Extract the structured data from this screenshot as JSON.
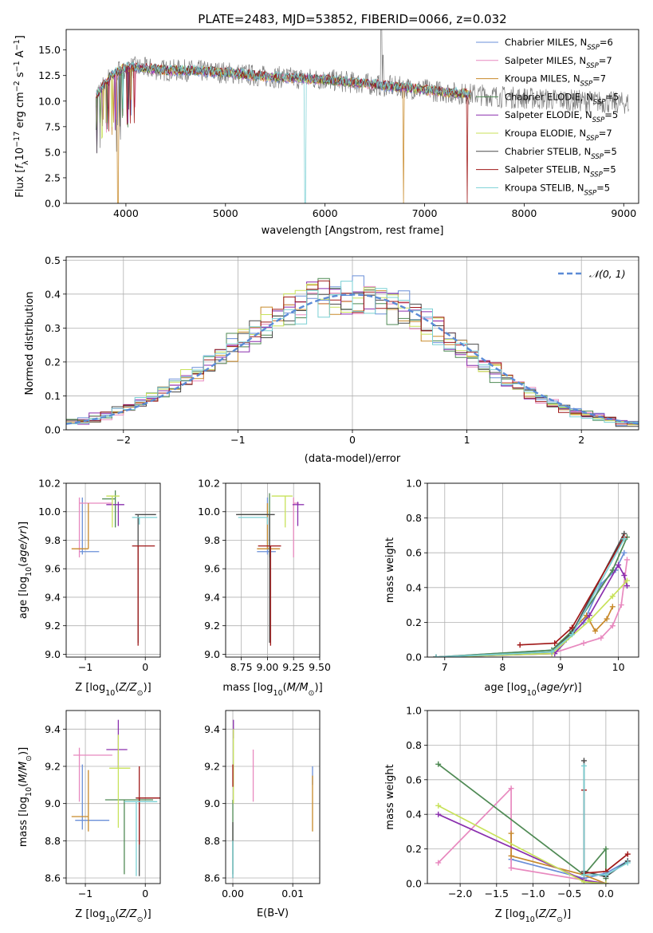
{
  "figure_title": "PLATE=2483, MJD=53852, FIBERID=0066, z=0.032",
  "model_colors": [
    "#6a8fd8",
    "#e889bf",
    "#c88a2a",
    "#4f8a54",
    "#8a2fae",
    "#c8e25a",
    "#4a4a4a",
    "#a01818",
    "#7ad0d4"
  ],
  "chart_data": [
    {
      "id": "spectrum",
      "type": "line",
      "title": "PLATE=2483, MJD=53852, FIBERID=0066, z=0.032",
      "xlabel": "wavelength [Angstrom, rest frame]",
      "ylabel": "Flux [f_λ 10^-17 erg cm^-2 s^-1 A^-1]",
      "xlim": [
        3400,
        9150
      ],
      "ylim": [
        0,
        17
      ],
      "xticks": [
        4000,
        5000,
        6000,
        7000,
        8000,
        9000
      ],
      "yticks": [
        0.0,
        2.5,
        5.0,
        7.5,
        10.0,
        12.5,
        15.0
      ],
      "legend_position": "top-right",
      "legend": [
        {
          "base": "Chabrier MILES, N",
          "sub": "SSP",
          "tail": "=6"
        },
        {
          "base": "Salpeter MILES, N",
          "sub": "SSP",
          "tail": "=7"
        },
        {
          "base": "Kroupa MILES, N",
          "sub": "SSP",
          "tail": "=7"
        },
        {
          "base": "Chabrier ELODIE, N",
          "sub": "SSP",
          "tail": "=5"
        },
        {
          "base": "Salpeter ELODIE, N",
          "sub": "SSP",
          "tail": "=5"
        },
        {
          "base": "Kroupa ELODIE, N",
          "sub": "SSP",
          "tail": "=7"
        },
        {
          "base": "Chabrier STELIB, N",
          "sub": "SSP",
          "tail": "=5"
        },
        {
          "base": "Salpeter STELIB, N",
          "sub": "SSP",
          "tail": "=5"
        },
        {
          "base": "Kroupa STELIB, N",
          "sub": "SSP",
          "tail": "=5"
        }
      ],
      "data_trend": {
        "x": [
          3700,
          3850,
          4000,
          4200,
          4400,
          4600,
          4800,
          5000,
          5200,
          5400,
          5600,
          5800,
          6000,
          6200,
          6400,
          6600,
          6800,
          7000,
          7200,
          7400,
          7600,
          7800,
          8000,
          8200,
          8400,
          8600,
          8800,
          9000
        ],
        "y": [
          10.5,
          12.5,
          13.3,
          13.2,
          13.0,
          13.0,
          12.9,
          12.8,
          12.6,
          12.4,
          12.3,
          12.2,
          12.1,
          11.9,
          11.7,
          11.5,
          11.3,
          11.1,
          10.9,
          10.7,
          10.6,
          10.4,
          10.3,
          10.2,
          10.1,
          10.0,
          9.9,
          9.8
        ]
      },
      "data_end": 9050,
      "model_ends": [
        7460,
        7460,
        7460,
        7460,
        7460,
        7460,
        7460,
        7460,
        7460
      ],
      "model_drops": [
        {
          "model": 2,
          "x": [
            3920,
            6790
          ]
        },
        {
          "model": 8,
          "x": [
            5800
          ]
        },
        {
          "model": 7,
          "x": [
            7430
          ]
        }
      ]
    },
    {
      "id": "residuals",
      "type": "histogram",
      "xlabel": "(data-model)/error",
      "ylabel": "Normed distribution",
      "xlim": [
        -2.5,
        2.5
      ],
      "ylim": [
        0,
        0.51
      ],
      "xticks": [
        -2,
        -1,
        0,
        1,
        2
      ],
      "yticks": [
        0.0,
        0.1,
        0.2,
        0.3,
        0.4,
        0.5
      ],
      "bin_width": 0.1,
      "legend_position": "top-right",
      "reference_curve": {
        "name": "𝒩(0, 1)",
        "mean": 0,
        "sigma": 1,
        "style": "dashed",
        "color": "#5b8bd6"
      }
    },
    {
      "id": "z-age",
      "type": "scatter",
      "xlabel": "Z [log10(Z/Z⊙)]",
      "ylabel": "age [log10(age/yr)]",
      "xlim": [
        -1.32,
        0.25
      ],
      "ylim": [
        8.98,
        10.2
      ],
      "xticks": [
        -1,
        0
      ],
      "yticks": [
        9.0,
        9.2,
        9.4,
        9.6,
        9.8,
        10.0,
        10.2
      ],
      "points": [
        {
          "model": 0,
          "x": -1.05,
          "y": 9.72,
          "xerr": [
            0.05,
            0.28
          ],
          "yerr": [
            0.02,
            0.38
          ]
        },
        {
          "model": 1,
          "x": -1.1,
          "y": 10.06,
          "xerr": [
            0.0,
            0.55
          ],
          "yerr": [
            0.38,
            0.04
          ]
        },
        {
          "model": 2,
          "x": -0.95,
          "y": 9.74,
          "xerr": [
            0.28,
            0.0
          ],
          "yerr": [
            0.0,
            0.32
          ]
        },
        {
          "model": 3,
          "x": -0.5,
          "y": 10.09,
          "xerr": [
            0.22,
            0.0
          ],
          "yerr": [
            0.2,
            0.06
          ]
        },
        {
          "model": 4,
          "x": -0.45,
          "y": 10.05,
          "xerr": [
            0.2,
            0.1
          ],
          "yerr": [
            0.15,
            0.02
          ]
        },
        {
          "model": 5,
          "x": -0.55,
          "y": 10.11,
          "xerr": [
            0.1,
            0.12
          ],
          "yerr": [
            0.22,
            0.0
          ]
        },
        {
          "model": 6,
          "x": -0.12,
          "y": 9.98,
          "xerr": [
            0.05,
            0.3
          ],
          "yerr": [
            0.9,
            0.0
          ]
        },
        {
          "model": 7,
          "x": -0.12,
          "y": 9.76,
          "xerr": [
            0.1,
            0.28
          ],
          "yerr": [
            0.7,
            0.0
          ]
        },
        {
          "model": 8,
          "x": -0.1,
          "y": 9.96,
          "xerr": [
            0.12,
            0.3
          ],
          "yerr": [
            0.05,
            0.0
          ]
        }
      ]
    },
    {
      "id": "mass-age",
      "type": "scatter",
      "xlabel": "mass [log10(M/M⊙)]",
      "ylabel": "",
      "xlim": [
        8.6,
        9.5
      ],
      "ylim": [
        8.98,
        10.2
      ],
      "xticks": [
        8.75,
        9.0,
        9.25,
        9.5
      ],
      "yticks": [
        9.0,
        9.2,
        9.4,
        9.6,
        9.8,
        10.0,
        10.2
      ],
      "points": [
        {
          "model": 0,
          "x": 9.0,
          "y": 9.72,
          "xerr": [
            0.1,
            0.08
          ],
          "yerr": [
            0.02,
            0.38
          ]
        },
        {
          "model": 1,
          "x": 9.25,
          "y": 10.06,
          "xerr": [
            0.0,
            0.05
          ],
          "yerr": [
            0.38,
            0.04
          ]
        },
        {
          "model": 2,
          "x": 9.0,
          "y": 9.74,
          "xerr": [
            0.1,
            0.12
          ],
          "yerr": [
            0.0,
            0.32
          ]
        },
        {
          "model": 3,
          "x": 9.02,
          "y": 9.98,
          "xerr": [
            0.3,
            0.0
          ],
          "yerr": [
            0.3,
            0.15
          ]
        },
        {
          "model": 4,
          "x": 9.29,
          "y": 10.05,
          "xerr": [
            0.05,
            0.06
          ],
          "yerr": [
            0.15,
            0.02
          ]
        },
        {
          "model": 5,
          "x": 9.17,
          "y": 10.11,
          "xerr": [
            0.13,
            0.07
          ],
          "yerr": [
            0.22,
            0.0
          ]
        },
        {
          "model": 6,
          "x": 9.02,
          "y": 9.98,
          "xerr": [
            0.32,
            0.05
          ],
          "yerr": [
            0.9,
            0.0
          ]
        },
        {
          "model": 7,
          "x": 9.03,
          "y": 9.76,
          "xerr": [
            0.12,
            0.1
          ],
          "yerr": [
            0.7,
            0.0
          ]
        },
        {
          "model": 8,
          "x": 9.0,
          "y": 9.96,
          "xerr": [
            0.28,
            0.0
          ],
          "yerr": [
            0.05,
            0.0
          ]
        }
      ]
    },
    {
      "id": "age-weight",
      "type": "line",
      "xlabel": "age [log10(age/yr)]",
      "ylabel": "mass weight",
      "xlim": [
        6.7,
        10.35
      ],
      "ylim": [
        0,
        1
      ],
      "xticks": [
        7,
        8,
        9,
        10
      ],
      "yticks": [
        0.0,
        0.2,
        0.4,
        0.6,
        0.8,
        1.0
      ],
      "series": [
        {
          "model": 0,
          "x": [
            6.85,
            8.85,
            9.1,
            9.4,
            9.7,
            9.95,
            10.1
          ],
          "y": [
            0.0,
            0.04,
            0.1,
            0.2,
            0.42,
            0.5,
            0.6
          ]
        },
        {
          "model": 1,
          "x": [
            6.85,
            8.85,
            9.4,
            9.7,
            9.9,
            10.05,
            10.15
          ],
          "y": [
            0.0,
            0.02,
            0.08,
            0.11,
            0.18,
            0.3,
            0.56
          ]
        },
        {
          "model": 2,
          "x": [
            6.85,
            8.85,
            9.45,
            9.6,
            9.8,
            9.9
          ],
          "y": [
            0.0,
            0.03,
            0.24,
            0.15,
            0.22,
            0.29
          ]
        },
        {
          "model": 3,
          "x": [
            6.85,
            8.85,
            9.2,
            9.9,
            10.15
          ],
          "y": [
            0.0,
            0.04,
            0.15,
            0.5,
            0.69
          ]
        },
        {
          "model": 4,
          "x": [
            6.85,
            8.9,
            9.5,
            10.0,
            10.1,
            10.15
          ],
          "y": [
            0.0,
            0.02,
            0.24,
            0.53,
            0.47,
            0.41
          ]
        },
        {
          "model": 5,
          "x": [
            6.85,
            8.85,
            9.5,
            9.9,
            10.15
          ],
          "y": [
            0.0,
            0.02,
            0.21,
            0.35,
            0.44
          ]
        },
        {
          "model": 6,
          "x": [
            6.85,
            8.85,
            9.2,
            10.1
          ],
          "y": [
            0.0,
            0.03,
            0.14,
            0.71
          ]
        },
        {
          "model": 7,
          "x": [
            8.3,
            8.9,
            9.2,
            10.1
          ],
          "y": [
            0.07,
            0.08,
            0.17,
            0.69
          ]
        },
        {
          "model": 8,
          "x": [
            6.85,
            8.85,
            9.2,
            10.1
          ],
          "y": [
            0.0,
            0.03,
            0.13,
            0.68
          ]
        }
      ]
    },
    {
      "id": "z-mass",
      "type": "scatter",
      "xlabel": "Z [log10(Z/Z⊙)]",
      "ylabel": "mass [log10(M/M⊙)]",
      "xlim": [
        -1.32,
        0.25
      ],
      "ylim": [
        8.57,
        9.5
      ],
      "xticks": [
        -1,
        0
      ],
      "yticks": [
        8.6,
        8.8,
        9.0,
        9.2,
        9.4
      ],
      "points": [
        {
          "model": 0,
          "x": -1.05,
          "y": 8.91,
          "xerr": [
            0.12,
            0.45
          ],
          "yerr": [
            0.05,
            0.3
          ]
        },
        {
          "model": 1,
          "x": -1.1,
          "y": 9.26,
          "xerr": [
            0.1,
            0.55
          ],
          "yerr": [
            0.25,
            0.04
          ]
        },
        {
          "model": 2,
          "x": -0.95,
          "y": 8.93,
          "xerr": [
            0.28,
            0.0
          ],
          "yerr": [
            0.08,
            0.25
          ]
        },
        {
          "model": 3,
          "x": -0.35,
          "y": 9.02,
          "xerr": [
            0.32,
            0.48
          ],
          "yerr": [
            0.4,
            0.0
          ]
        },
        {
          "model": 4,
          "x": -0.45,
          "y": 9.29,
          "xerr": [
            0.2,
            0.15
          ],
          "yerr": [
            0.1,
            0.16
          ]
        },
        {
          "model": 5,
          "x": -0.45,
          "y": 9.19,
          "xerr": [
            0.15,
            0.2
          ],
          "yerr": [
            0.32,
            0.18
          ]
        },
        {
          "model": 6,
          "x": -0.1,
          "y": 9.03,
          "xerr": [
            0.06,
            0.35
          ],
          "yerr": [
            0.42,
            0.0
          ]
        },
        {
          "model": 7,
          "x": -0.1,
          "y": 9.03,
          "xerr": [
            0.05,
            0.35
          ],
          "yerr": [
            0.25,
            0.17
          ]
        },
        {
          "model": 8,
          "x": -0.15,
          "y": 9.01,
          "xerr": [
            0.2,
            0.35
          ],
          "yerr": [
            0.4,
            0.0
          ]
        }
      ]
    },
    {
      "id": "ebv-mass",
      "type": "scatter",
      "xlabel": "E(B-V)",
      "ylabel": "",
      "xlim": [
        -0.0012,
        0.0145
      ],
      "ylim": [
        8.57,
        9.5
      ],
      "xticks": [
        0.0,
        0.01
      ],
      "yticks": [
        8.6,
        8.8,
        9.0,
        9.2,
        9.4
      ],
      "points": [
        {
          "model": 0,
          "x": 0.0133,
          "y": 9.1,
          "xerr": [
            0,
            0
          ],
          "yerr": [
            0.0,
            0.1
          ]
        },
        {
          "model": 1,
          "x": 0.0034,
          "y": 9.15,
          "xerr": [
            0,
            0
          ],
          "yerr": [
            0.14,
            0.14
          ]
        },
        {
          "model": 2,
          "x": 0.0133,
          "y": 9.0,
          "xerr": [
            0,
            0
          ],
          "yerr": [
            0.15,
            0.15
          ]
        },
        {
          "model": 3,
          "x": 0.0,
          "y": 9.02,
          "xerr": [
            0,
            0
          ],
          "yerr": [
            0.4,
            0.0
          ]
        },
        {
          "model": 4,
          "x": 0.0001,
          "y": 9.4,
          "xerr": [
            0,
            0
          ],
          "yerr": [
            0.05,
            0.05
          ]
        },
        {
          "model": 5,
          "x": 0.0001,
          "y": 9.2,
          "xerr": [
            0,
            0
          ],
          "yerr": [
            0.2,
            0.2
          ]
        },
        {
          "model": 6,
          "x": 0.0,
          "y": 8.9,
          "xerr": [
            0,
            0
          ],
          "yerr": [
            0.3,
            0.0
          ]
        },
        {
          "model": 7,
          "x": 0.0,
          "y": 9.15,
          "xerr": [
            0,
            0
          ],
          "yerr": [
            0.06,
            0.06
          ]
        },
        {
          "model": 8,
          "x": 0.0,
          "y": 8.8,
          "xerr": [
            0,
            0
          ],
          "yerr": [
            0.2,
            0.0
          ]
        }
      ]
    },
    {
      "id": "z-weight",
      "type": "line",
      "xlabel": "Z [log10(Z/Z⊙)]",
      "ylabel": "mass weight",
      "xlim": [
        -2.45,
        0.45
      ],
      "ylim": [
        0,
        1
      ],
      "xticks": [
        -2.0,
        -1.5,
        -1.0,
        -0.5,
        0.0
      ],
      "yticks": [
        0.0,
        0.2,
        0.4,
        0.6,
        0.8,
        1.0
      ],
      "series": [
        {
          "model": 0,
          "x": [
            -1.3,
            -0.3,
            0.0,
            0.3
          ],
          "y": [
            0.14,
            0.03,
            0.06,
            0.13
          ]
        },
        {
          "model": 1,
          "x": [
            -2.3,
            -1.3,
            -1.3,
            -0.3,
            0.0
          ],
          "y": [
            0.12,
            0.55,
            0.09,
            0.02,
            0.0
          ]
        },
        {
          "model": 2,
          "x": [
            -1.3,
            -1.3,
            -0.3,
            0.0
          ],
          "y": [
            0.29,
            0.16,
            0.05,
            0.0
          ]
        },
        {
          "model": 3,
          "x": [
            -2.3,
            -0.3,
            0.0,
            0.0
          ],
          "y": [
            0.69,
            0.05,
            0.2,
            0.03
          ]
        },
        {
          "model": 4,
          "x": [
            -2.3,
            -0.3,
            0.0
          ],
          "y": [
            0.4,
            0.02,
            0.0
          ]
        },
        {
          "model": 5,
          "x": [
            -2.3,
            -0.3,
            0.0
          ],
          "y": [
            0.45,
            0.01,
            0.0
          ]
        },
        {
          "model": 6,
          "x": [
            -0.3,
            -0.3,
            0.0,
            0.3
          ],
          "y": [
            0.71,
            0.07,
            0.04,
            0.13
          ]
        },
        {
          "model": 7,
          "x": [
            -0.3,
            -0.3,
            0.0,
            0.3
          ],
          "y": [
            0.54,
            0.06,
            0.07,
            0.17
          ]
        },
        {
          "model": 8,
          "x": [
            -0.3,
            -0.3,
            0.0,
            0.3
          ],
          "y": [
            0.68,
            0.05,
            0.05,
            0.12
          ]
        }
      ]
    }
  ]
}
